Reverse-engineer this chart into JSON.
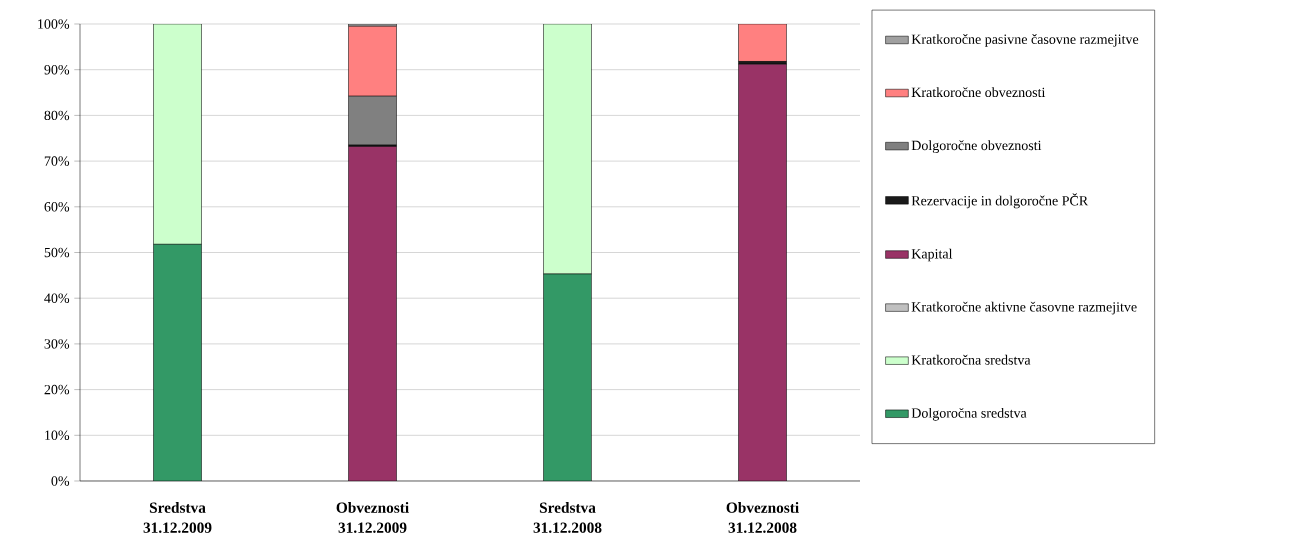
{
  "chart_data": {
    "type": "bar",
    "stacked": true,
    "grid": "y",
    "legend": "right",
    "categories": [
      "Sredstva 31.12.2009",
      "Obveznosti 31.12.2009",
      "Sredstva 31.12.2008",
      "Obveznosti 31.12.2008"
    ],
    "ylim": [
      0,
      100
    ],
    "yticks": [
      {
        "value": 0,
        "label": "0%"
      },
      {
        "value": 10,
        "label": "10%"
      },
      {
        "value": 20,
        "label": "20%"
      },
      {
        "value": 30,
        "label": "30%"
      },
      {
        "value": 40,
        "label": "40%"
      },
      {
        "value": 50,
        "label": "50%"
      },
      {
        "value": 60,
        "label": "60%"
      },
      {
        "value": 70,
        "label": "70%"
      },
      {
        "value": 80,
        "label": "80%"
      },
      {
        "value": 90,
        "label": "90%"
      },
      {
        "value": 100,
        "label": "100%"
      }
    ],
    "series": [
      {
        "name": "Dolgoročna sredstva",
        "color": "#339966",
        "values": [
          51.8,
          0,
          45.3,
          0
        ]
      },
      {
        "name": "Kratkoročna sredstva",
        "color": "#ccffcc",
        "values": [
          48.2,
          0,
          54.7,
          0
        ]
      },
      {
        "name": "Kratkoročne aktivne časovne razmejitve",
        "color": "#c0c0c0",
        "values": [
          0,
          0,
          0,
          0
        ]
      },
      {
        "name": "Kapital",
        "color": "#993366",
        "values": [
          0,
          73.2,
          0,
          91.2
        ]
      },
      {
        "name": "Rezervacije in dolgoročne PČR",
        "color": "#1a1a1a",
        "values": [
          0,
          0.3,
          0,
          0.6
        ]
      },
      {
        "name": "Dolgoročne obveznosti",
        "color": "#808080",
        "values": [
          0,
          10.7,
          0,
          0
        ]
      },
      {
        "name": "Kratkoročne obveznosti",
        "color": "#ff8080",
        "values": [
          0,
          15.3,
          0,
          8.2
        ]
      },
      {
        "name": "Kratkoročne pasivne časovne razmejitve",
        "color": "#a0a0a0",
        "values": [
          0,
          0.5,
          0,
          0
        ]
      }
    ]
  }
}
